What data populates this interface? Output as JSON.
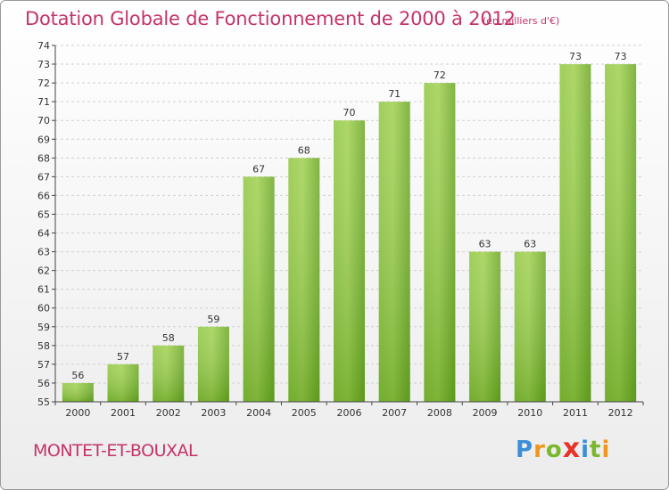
{
  "chart_data": {
    "type": "bar",
    "title": "Dotation Globale de Fonctionnement de 2000 à 2012",
    "subtitle": "(en milliers d'€)",
    "categories": [
      "2000",
      "2001",
      "2002",
      "2003",
      "2004",
      "2005",
      "2006",
      "2007",
      "2008",
      "2009",
      "2010",
      "2011",
      "2012"
    ],
    "values": [
      56,
      57,
      58,
      59,
      67,
      68,
      70,
      71,
      72,
      63,
      63,
      73,
      73
    ],
    "ylim": [
      55,
      74
    ],
    "yticks": [
      55,
      56,
      57,
      58,
      59,
      60,
      61,
      62,
      63,
      64,
      65,
      66,
      67,
      68,
      69,
      70,
      71,
      72,
      73,
      74
    ],
    "xlabel": "",
    "ylabel": "",
    "grid": true,
    "bar_color": "#7cb92e",
    "bar_color_light": "#9dcf4c"
  },
  "footer": {
    "commune": "MONTET-ET-BOUXAL",
    "logo_letters": [
      "P",
      "r",
      "o",
      "x",
      "i",
      "t",
      "i"
    ],
    "logo_colors": [
      "#3d8ed8",
      "#f0961e",
      "#7ab72f",
      "#e8332a",
      "#3d8ed8",
      "#7ab72f",
      "#f0961e"
    ]
  }
}
